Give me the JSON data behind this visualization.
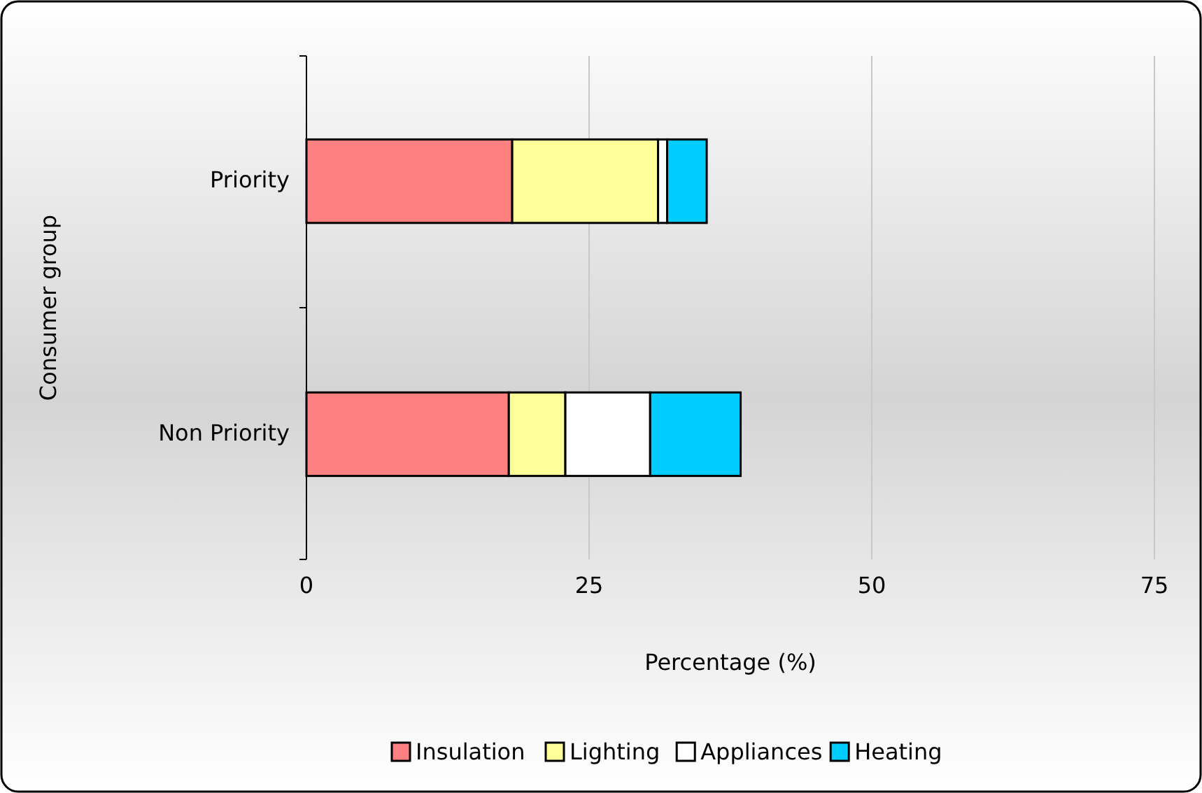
{
  "chart_data": {
    "type": "bar",
    "orientation": "horizontal",
    "stacked": true,
    "xlabel": "Percentage (%)",
    "ylabel": "Consumer group",
    "categories": [
      "Priority",
      "Non Priority"
    ],
    "series": [
      {
        "name": "Insulation",
        "color": "#ff8080",
        "values": [
          18.2,
          17.9
        ]
      },
      {
        "name": "Lighting",
        "color": "#ffff99",
        "values": [
          12.9,
          5.0
        ]
      },
      {
        "name": "Appliances",
        "color": "#ffffff",
        "values": [
          0.8,
          7.5
        ]
      },
      {
        "name": "Heating",
        "color": "#00ccff",
        "values": [
          3.5,
          8.0
        ]
      }
    ],
    "xlim": [
      0,
      75
    ],
    "xticks": [
      0,
      25,
      50,
      75
    ],
    "grid": "x",
    "legend": "bottom"
  }
}
